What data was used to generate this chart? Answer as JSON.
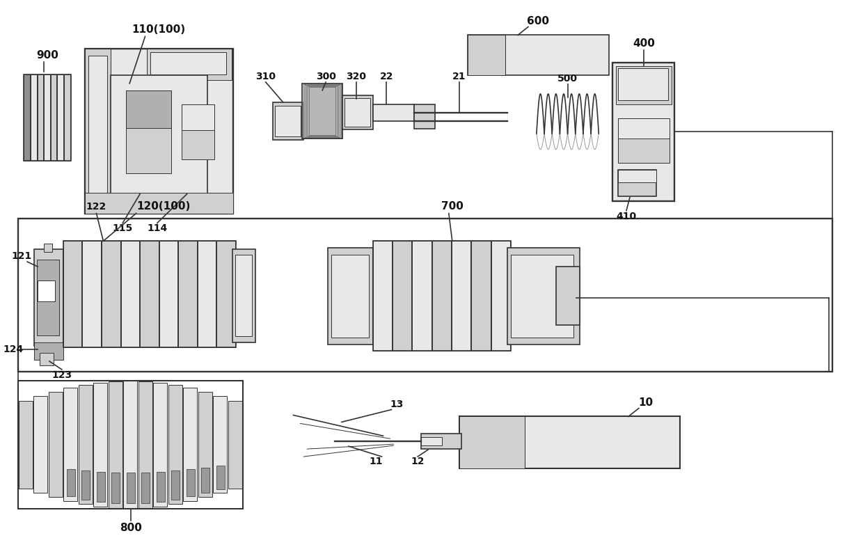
{
  "bg_color": "#ffffff",
  "lc": "#333333",
  "fc_light": "#e8e8e8",
  "fc_mid": "#d0d0d0",
  "fc_dark": "#b0b0b0",
  "fc_darker": "#909090",
  "figw": 12.4,
  "figh": 7.73,
  "dpi": 100
}
